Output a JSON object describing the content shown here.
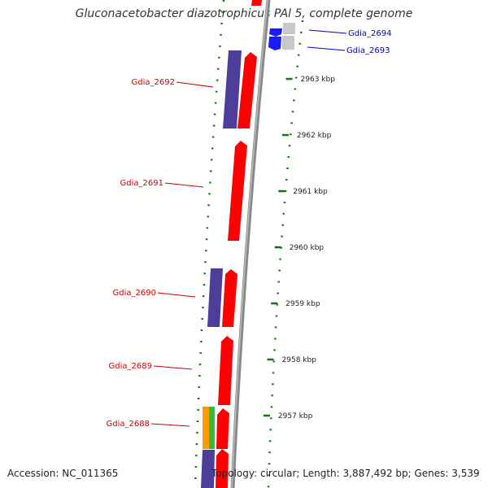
{
  "title": "Gluconacetobacter diazotrophicus PAl 5, complete genome",
  "footer": {
    "accession_label": "Accession:",
    "accession": "NC_011365",
    "topology_text": "Topology: circular; Length: 3,887,492 bp; Genes: 3,539"
  },
  "colors": {
    "forward_gene": "#ff0000",
    "reverse_gene": "#4b3f99",
    "other_gene_gray": "#c8c8c8",
    "other_gene_blue": "#1a1aff",
    "orange_gene": "#ff9900",
    "green_gene": "#33bb33",
    "tick": "#117711",
    "label_red": "#cc0000",
    "label_blue": "#0000cc",
    "backbone": "#888888"
  },
  "scale": {
    "kbp_ticks": [
      {
        "label": "2963 kbp",
        "kbp": 2963
      },
      {
        "label": "2962 kbp",
        "kbp": 2962
      },
      {
        "label": "2961 kbp",
        "kbp": 2961
      },
      {
        "label": "2960 kbp",
        "kbp": 2960
      },
      {
        "label": "2959 kbp",
        "kbp": 2959
      },
      {
        "label": "2958 kbp",
        "kbp": 2958
      },
      {
        "label": "2957 kbp",
        "kbp": 2957
      }
    ]
  },
  "gene_labels": [
    {
      "name": "Gdia_2694",
      "side": "right",
      "color": "blue"
    },
    {
      "name": "Gdia_2693",
      "side": "right",
      "color": "blue"
    },
    {
      "name": "Gdia_2692",
      "side": "left",
      "color": "red"
    },
    {
      "name": "Gdia_2691",
      "side": "left",
      "color": "red"
    },
    {
      "name": "Gdia_2690",
      "side": "left",
      "color": "red"
    },
    {
      "name": "Gdia_2689",
      "side": "left",
      "color": "red"
    },
    {
      "name": "Gdia_2688",
      "side": "left",
      "color": "red"
    }
  ]
}
